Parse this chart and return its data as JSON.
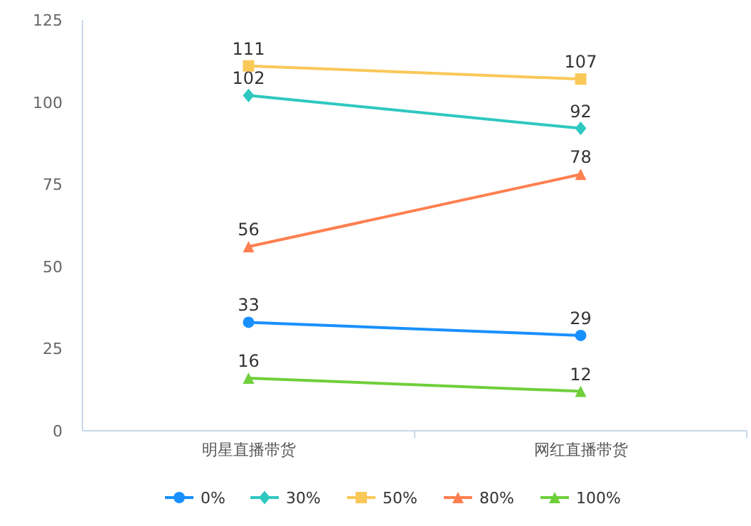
{
  "chart_data": {
    "type": "line",
    "categories": [
      "明星直播带货",
      "网红直播带货"
    ],
    "series": [
      {
        "name": "0%",
        "color": "#1890ff",
        "marker": "circle",
        "values": [
          33,
          29
        ]
      },
      {
        "name": "30%",
        "color": "#2fc8c0",
        "marker": "diamond",
        "values": [
          102,
          92
        ]
      },
      {
        "name": "50%",
        "color": "#fac858",
        "marker": "square",
        "values": [
          111,
          107
        ]
      },
      {
        "name": "80%",
        "color": "#ff7f50",
        "marker": "triangle",
        "values": [
          56,
          78
        ]
      },
      {
        "name": "100%",
        "color": "#6fcf3b",
        "marker": "triangle",
        "values": [
          16,
          12
        ]
      }
    ],
    "ylim": [
      0,
      125
    ],
    "yticks": [
      0,
      25,
      50,
      75,
      100,
      125
    ],
    "data_labels": true,
    "legend": "bottom",
    "grid": false
  }
}
